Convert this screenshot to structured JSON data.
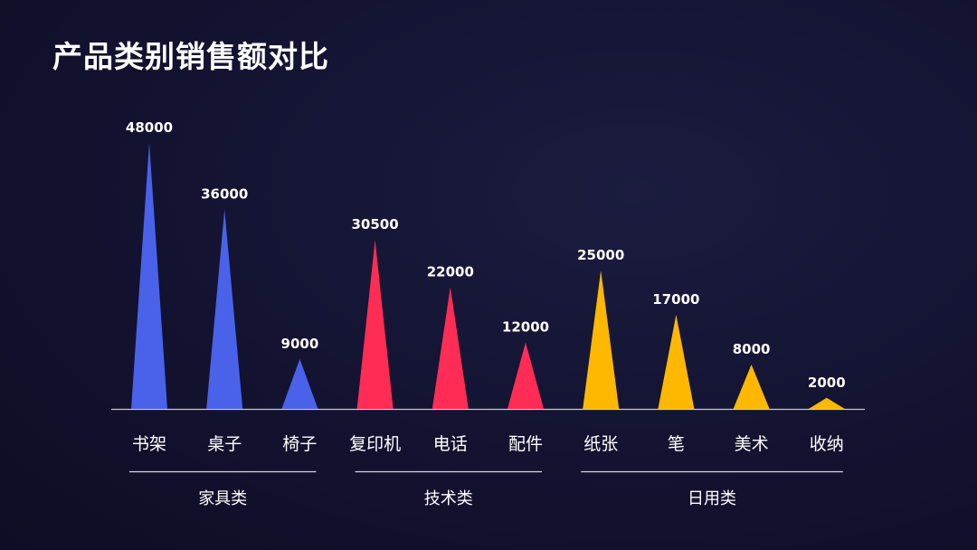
{
  "title": "产品类别销售额对比",
  "chart_data": {
    "type": "bar",
    "title": "产品类别销售额对比",
    "categories": [
      "书架",
      "桌子",
      "椅子",
      "复印机",
      "电话",
      "配件",
      "纸张",
      "笔",
      "美术",
      "收纳"
    ],
    "values": [
      48000,
      36000,
      9000,
      30500,
      22000,
      12000,
      25000,
      17000,
      8000,
      2000
    ],
    "value_labels": [
      "48000",
      "36000",
      "9000",
      "30500",
      "22000",
      "12000",
      "25000",
      "17000",
      "8000",
      "2000"
    ],
    "groups": [
      {
        "name": "家具类",
        "color": "#4a62ea",
        "categories": [
          "书架",
          "桌子",
          "椅子"
        ]
      },
      {
        "name": "技术类",
        "color": "#ff2d55",
        "categories": [
          "复印机",
          "电话",
          "配件"
        ]
      },
      {
        "name": "日用类",
        "color": "#ffb800",
        "categories": [
          "纸张",
          "笔",
          "美术",
          "收纳"
        ]
      }
    ],
    "ylim": [
      0,
      48000
    ],
    "grid": false,
    "legend": "none",
    "xlabel": "",
    "ylabel": ""
  }
}
